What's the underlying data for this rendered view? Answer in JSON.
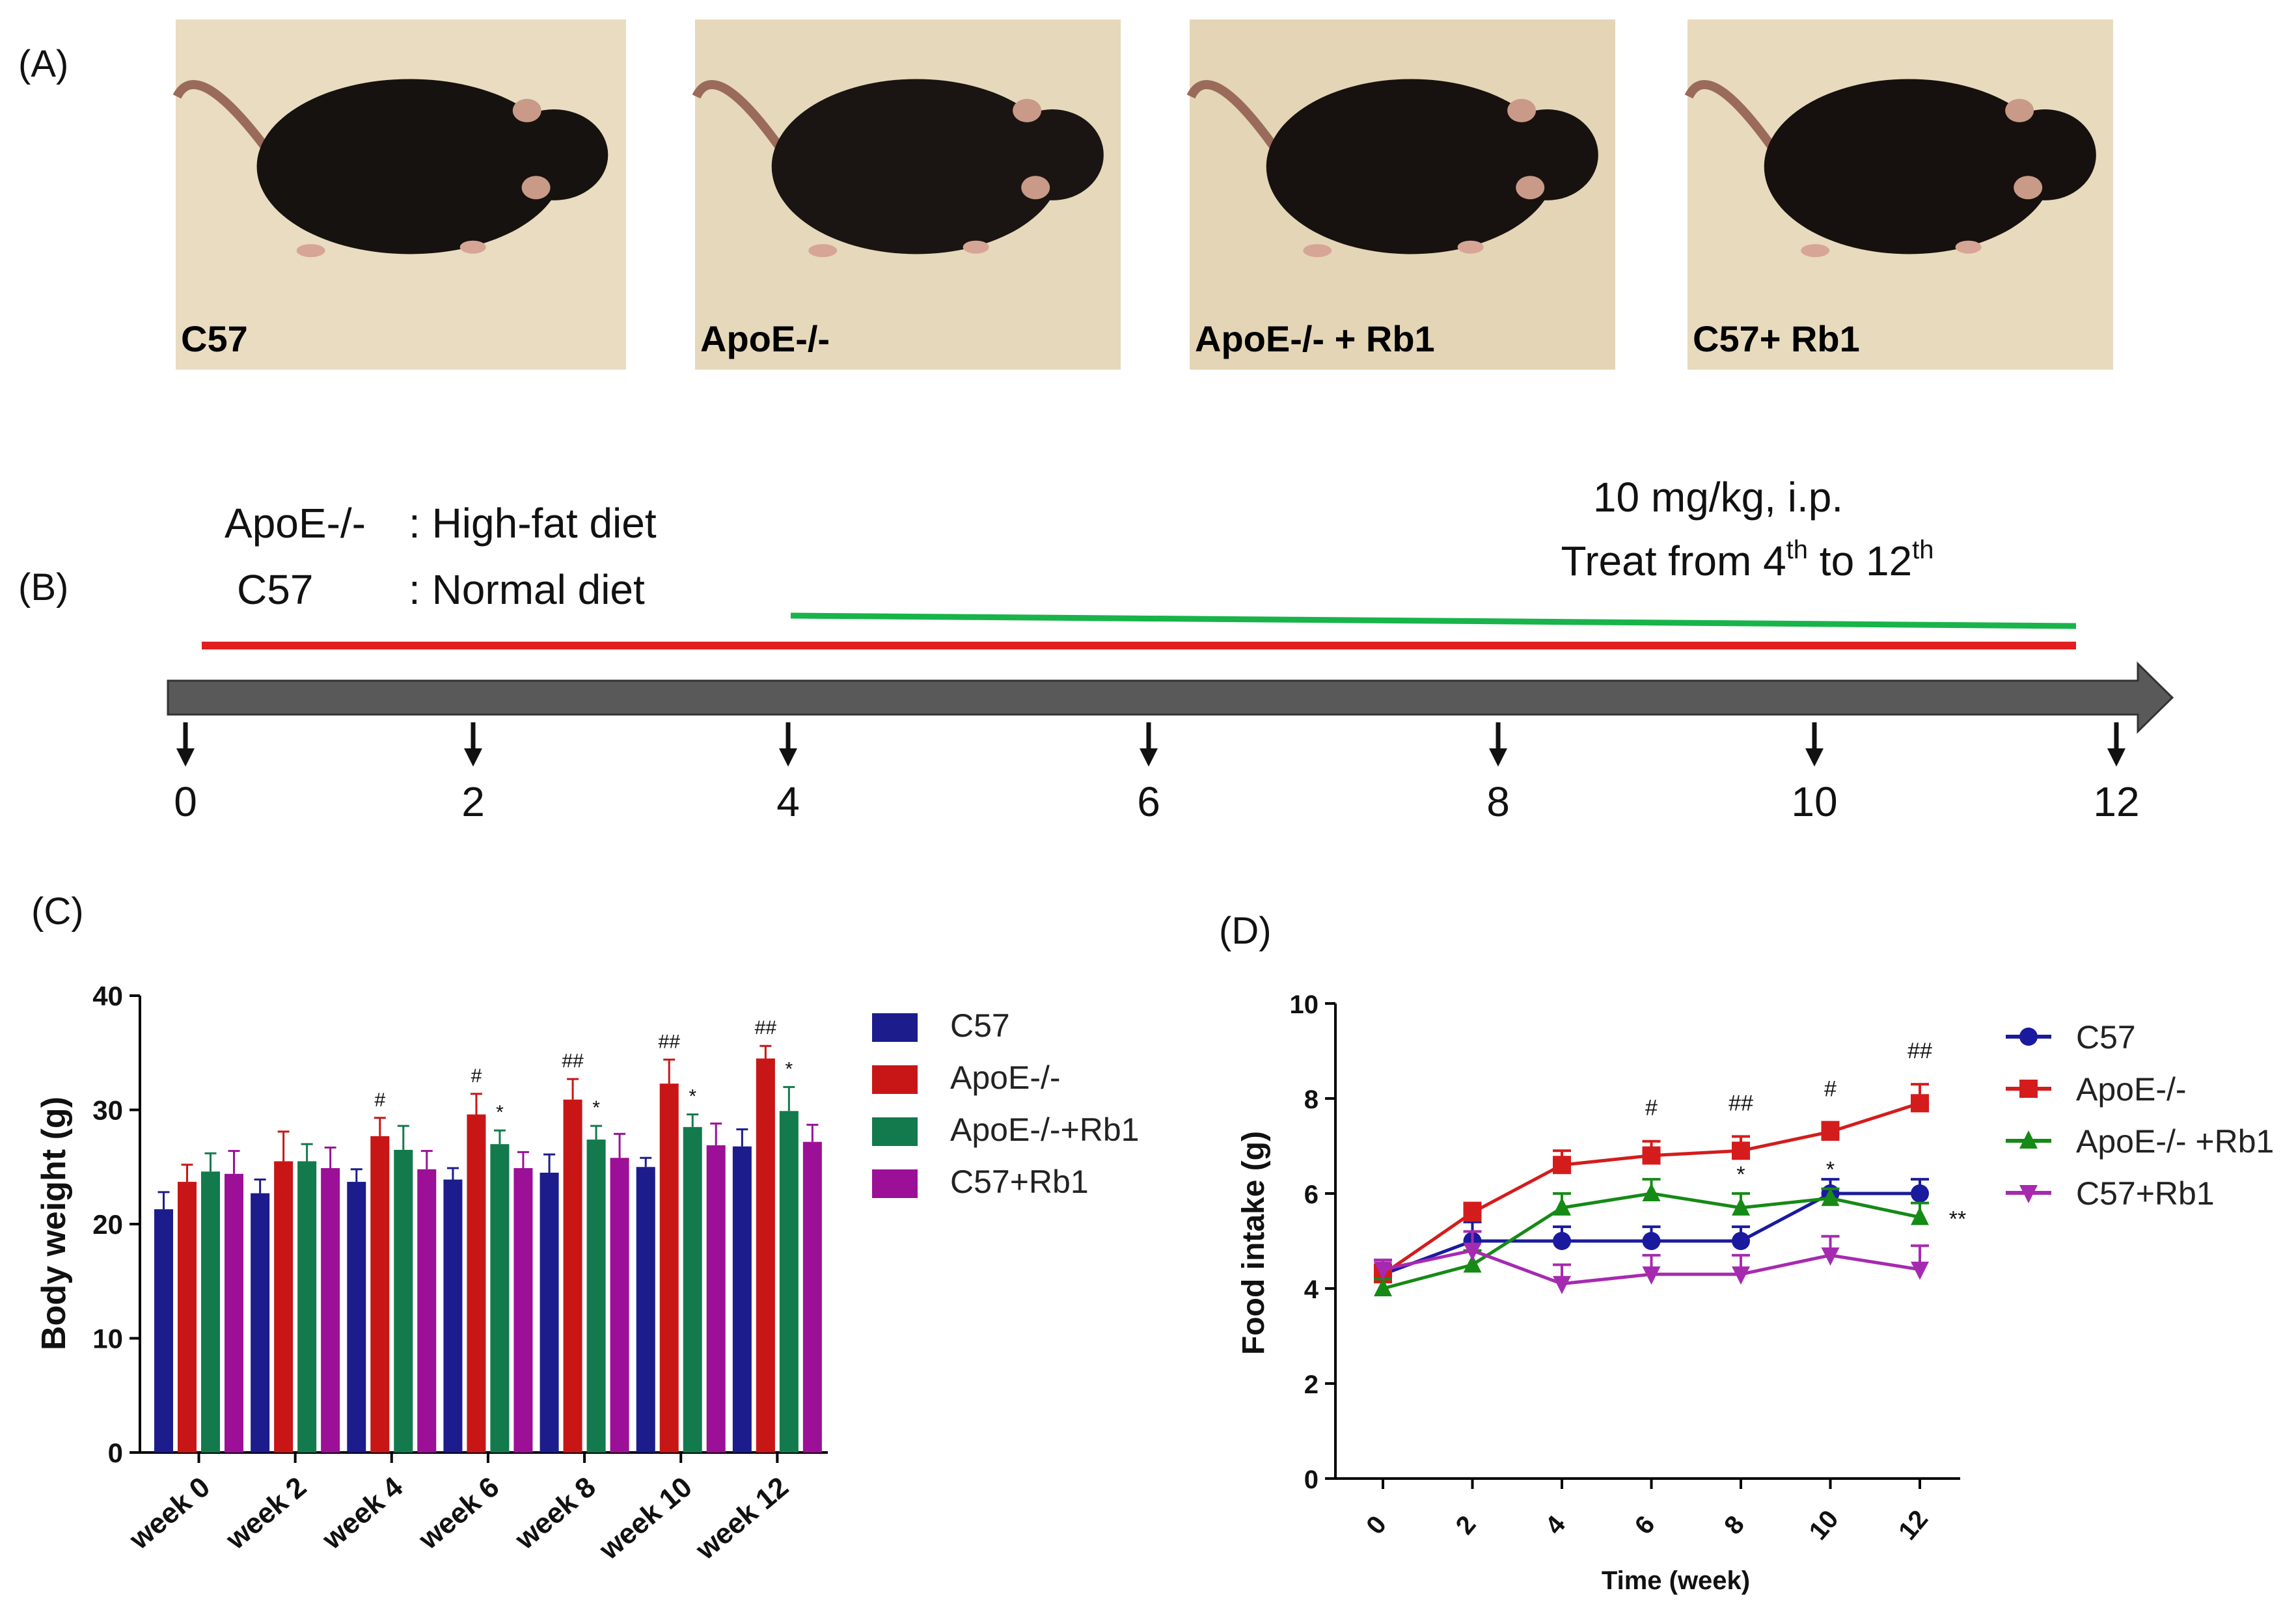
{
  "panels": {
    "a": "(A)",
    "b": "(B)",
    "c": "(C)",
    "d": "(D)"
  },
  "photos": [
    {
      "label": "C57",
      "fur": "#16120f",
      "bg": "#e9dcc0"
    },
    {
      "label": "ApoE-/-",
      "fur": "#1a1512",
      "bg": "#e6d8bb"
    },
    {
      "label": "ApoE-/- + Rb1",
      "fur": "#17120f",
      "bg": "#e4d5b6"
    },
    {
      "label": "C57+ Rb1",
      "fur": "#16110e",
      "bg": "#e8dabd"
    }
  ],
  "timeline": {
    "diet_groups": [
      {
        "name": "ApoE-/-",
        "diet": ": High-fat diet"
      },
      {
        "name": "C57",
        "diet": ": Normal diet"
      }
    ],
    "dose": "10 mg/kg, i.p.",
    "treat_prefix": "Treat from 4",
    "treat_sup1": "th",
    "treat_mid": " to 12",
    "treat_sup2": "th",
    "ticks": [
      "0",
      "2",
      "4",
      "6",
      "8",
      "10",
      "12"
    ],
    "colors": {
      "diet": "#e01e1e",
      "treatment": "#18b44a",
      "arrow": "#595959"
    }
  },
  "chart_data": [
    {
      "type": "bar",
      "title": "",
      "ylabel": "Body weight (g)",
      "xlabel": "",
      "ylim": [
        0,
        40
      ],
      "yticks": [
        "0",
        "10",
        "20",
        "30",
        "40"
      ],
      "categories": [
        "week 0",
        "week 2",
        "week 4",
        "week 6",
        "week 8",
        "week 10",
        "week 12"
      ],
      "series": [
        {
          "name": "C57",
          "color": "#1c1c8c",
          "values": [
            21.3,
            22.7,
            23.7,
            23.9,
            24.5,
            25.0,
            26.8
          ],
          "err": [
            1.5,
            1.2,
            1.1,
            1.0,
            1.6,
            0.8,
            1.5
          ],
          "marks": [
            "",
            "",
            "",
            "",
            "",
            "",
            ""
          ]
        },
        {
          "name": "ApoE-/-",
          "color": "#c81616",
          "values": [
            23.7,
            25.5,
            27.7,
            29.6,
            30.9,
            32.3,
            34.5
          ],
          "err": [
            1.5,
            2.6,
            1.6,
            1.8,
            1.8,
            2.1,
            1.1
          ],
          "marks": [
            "",
            "",
            "#",
            "#",
            "##",
            "##",
            "##"
          ]
        },
        {
          "name": "ApoE-/-+Rb1",
          "color": "#127a4c",
          "values": [
            24.6,
            25.5,
            26.5,
            27.0,
            27.4,
            28.5,
            29.9
          ],
          "err": [
            1.6,
            1.5,
            2.1,
            1.2,
            1.2,
            1.1,
            2.1
          ],
          "marks": [
            "",
            "",
            "",
            "*",
            "*",
            "*",
            "*"
          ]
        },
        {
          "name": "C57+Rb1",
          "color": "#9b1096",
          "values": [
            24.4,
            24.9,
            24.8,
            24.9,
            25.8,
            26.9,
            27.2
          ],
          "err": [
            2.0,
            1.8,
            1.6,
            1.4,
            2.1,
            1.9,
            1.5
          ],
          "marks": [
            "",
            "",
            "",
            "",
            "",
            "",
            ""
          ]
        }
      ]
    },
    {
      "type": "line",
      "title": "",
      "xlabel": "Time (week)",
      "ylabel": "Food intake (g)",
      "ylim": [
        0,
        10
      ],
      "yticks": [
        "0",
        "2",
        "4",
        "6",
        "8",
        "10"
      ],
      "x": [
        0,
        2,
        4,
        6,
        8,
        10,
        12
      ],
      "xticks": [
        "0",
        "2",
        "4",
        "6",
        "8",
        "10",
        "12"
      ],
      "series": [
        {
          "name": "C57",
          "color": "#1a1a9e",
          "marker": "circle",
          "values": [
            4.3,
            5.0,
            5.0,
            5.0,
            5.0,
            6.0,
            6.0
          ],
          "err": [
            0.3,
            0.4,
            0.3,
            0.3,
            0.3,
            0.3,
            0.3
          ],
          "marks": [
            "",
            "",
            "",
            "",
            "",
            "",
            ""
          ]
        },
        {
          "name": "ApoE-/-",
          "color": "#d41c1c",
          "marker": "square",
          "values": [
            4.3,
            5.6,
            6.6,
            6.8,
            6.9,
            7.3,
            7.9
          ],
          "err": [
            0.2,
            0.2,
            0.3,
            0.3,
            0.3,
            0.2,
            0.4
          ],
          "marks": [
            "",
            "",
            "",
            "#",
            "##",
            "#",
            "##"
          ]
        },
        {
          "name": "ApoE-/- +Rb1",
          "color": "#168a16",
          "marker": "triangle",
          "values": [
            4.0,
            4.5,
            5.7,
            6.0,
            5.7,
            5.9,
            5.5
          ],
          "err": [
            0.2,
            0.3,
            0.3,
            0.3,
            0.3,
            0.2,
            0.3
          ],
          "marks": [
            "",
            "",
            "",
            "",
            "*",
            "*",
            "**"
          ]
        },
        {
          "name": "C57+Rb1",
          "color": "#a62ab0",
          "marker": "triangle-down",
          "values": [
            4.4,
            4.8,
            4.1,
            4.3,
            4.3,
            4.7,
            4.4
          ],
          "err": [
            0.2,
            0.4,
            0.4,
            0.4,
            0.4,
            0.4,
            0.5
          ],
          "marks": [
            "",
            "",
            "",
            "",
            "",
            "",
            ""
          ]
        }
      ]
    }
  ]
}
